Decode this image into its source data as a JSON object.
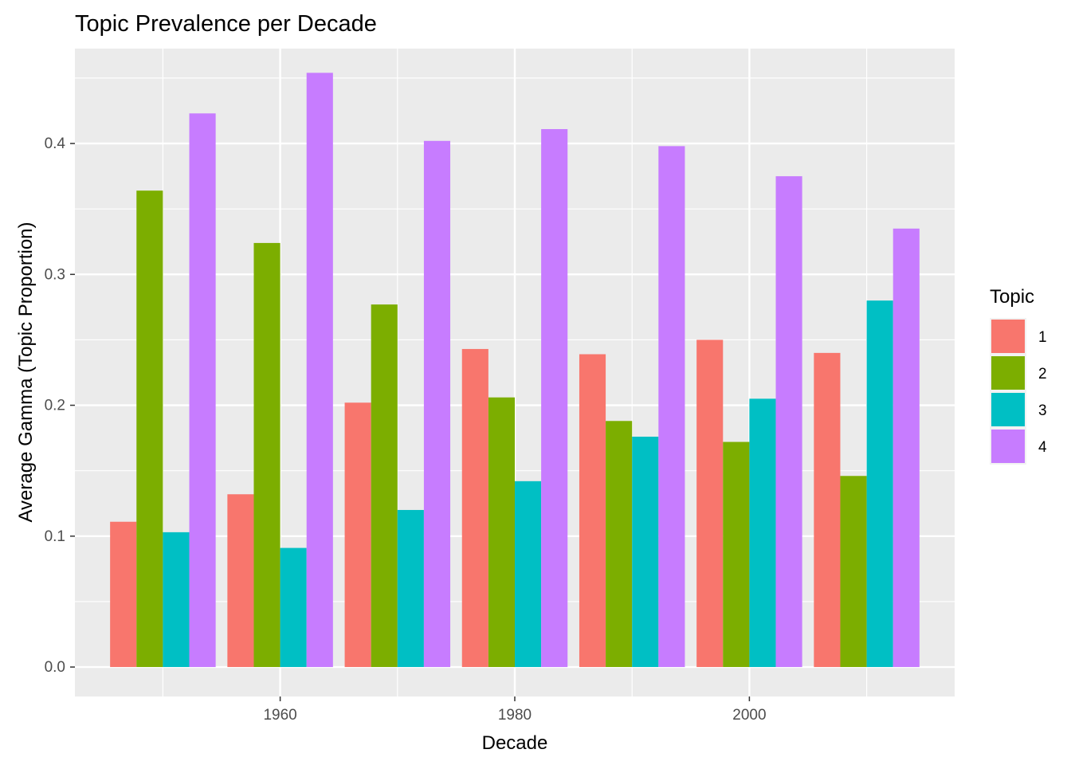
{
  "chart_data": {
    "type": "bar",
    "title": "Topic Prevalence per Decade",
    "xlabel": "Decade",
    "ylabel": "Average Gamma (Topic Proportion)",
    "x": [
      1950,
      1960,
      1970,
      1980,
      1990,
      2000,
      2010
    ],
    "x_ticks": [
      1960,
      1980,
      2000
    ],
    "x_tick_labels": [
      "1960",
      "1980",
      "2000"
    ],
    "xlim": [
      1942.5,
      2017.5
    ],
    "ylim": [
      -0.0225,
      0.4725
    ],
    "y_ticks": [
      0.0,
      0.1,
      0.2,
      0.3,
      0.4
    ],
    "y_tick_labels": [
      "0.0",
      "0.1",
      "0.2",
      "0.3",
      "0.4"
    ],
    "grid": true,
    "legend": {
      "title": "Topic",
      "position": "right"
    },
    "series": [
      {
        "name": "1",
        "color": "#F8766D",
        "values": [
          0.111,
          0.132,
          0.202,
          0.243,
          0.239,
          0.25,
          0.24
        ]
      },
      {
        "name": "2",
        "color": "#7CAE00",
        "values": [
          0.364,
          0.324,
          0.277,
          0.206,
          0.188,
          0.172,
          0.146
        ]
      },
      {
        "name": "3",
        "color": "#00BFC4",
        "values": [
          0.103,
          0.091,
          0.12,
          0.142,
          0.176,
          0.205,
          0.28
        ]
      },
      {
        "name": "4",
        "color": "#C77CFF",
        "values": [
          0.423,
          0.454,
          0.402,
          0.411,
          0.398,
          0.375,
          0.335
        ]
      }
    ]
  }
}
